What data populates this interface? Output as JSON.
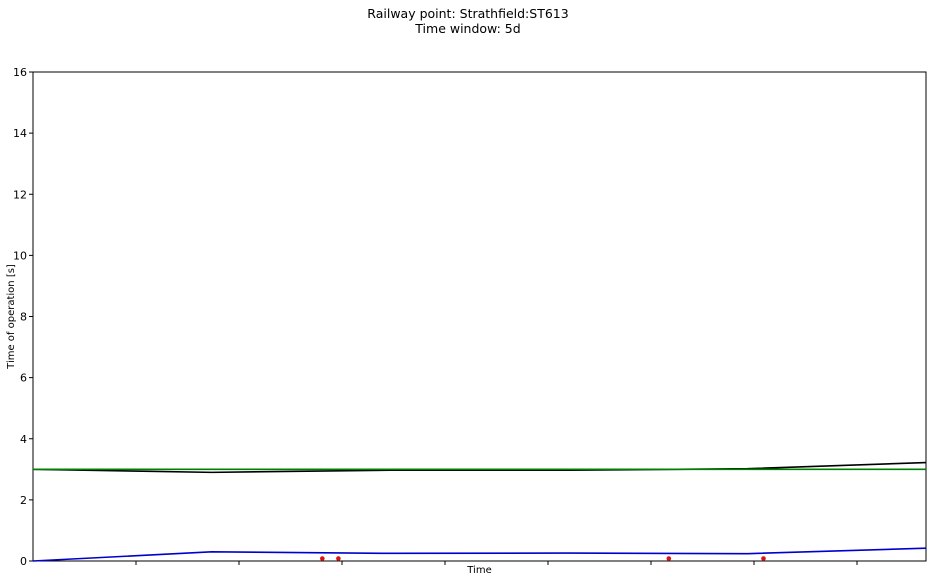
{
  "title_line1": "Railway point: Strathfield:ST613",
  "title_line2": "Time window: 5d",
  "chart_data": {
    "type": "line",
    "xlabel": "Time",
    "ylabel": "Time of operation [s]",
    "ylim": [
      0,
      16
    ],
    "yticks": [
      0,
      2,
      4,
      6,
      8,
      10,
      12,
      14,
      16
    ],
    "xlim": [
      0,
      5
    ],
    "x_tick_labels_shown": false,
    "grid": false,
    "series": [
      {
        "color": "#000000",
        "points": [
          [
            0,
            3.0
          ],
          [
            1.0,
            2.9
          ],
          [
            2.0,
            2.97
          ],
          [
            3.0,
            2.97
          ],
          [
            4.0,
            3.02
          ],
          [
            5.0,
            3.22
          ]
        ]
      },
      {
        "color": "#008000",
        "points": [
          [
            0,
            3.0
          ],
          [
            5.0,
            3.0
          ]
        ]
      },
      {
        "color": "#0000cc",
        "points": [
          [
            0,
            0.0
          ],
          [
            1.0,
            0.3
          ],
          [
            2.0,
            0.25
          ],
          [
            3.0,
            0.26
          ],
          [
            4.0,
            0.24
          ],
          [
            5.0,
            0.42
          ]
        ]
      }
    ],
    "markers": {
      "color": "#dd1111",
      "points": [
        [
          1.62,
          0.08
        ],
        [
          1.71,
          0.08
        ],
        [
          3.56,
          0.08
        ],
        [
          4.09,
          0.08
        ]
      ]
    }
  }
}
